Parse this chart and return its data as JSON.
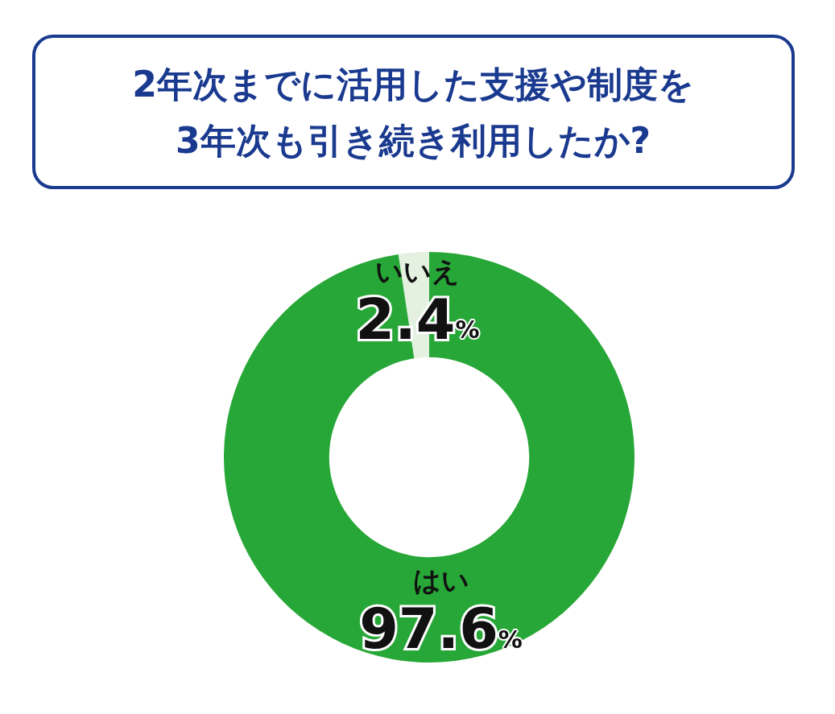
{
  "chart_data": {
    "type": "donut",
    "title": "2年次までに活用した支援や制度を\n3年次も引き続き利用したか?",
    "categories": [
      "いいえ",
      "はい"
    ],
    "values": [
      2.4,
      97.6
    ],
    "value_labels": [
      "2.4%",
      "97.6%"
    ],
    "colors": [
      "#e4f1e1",
      "#27a737"
    ],
    "legend": false
  }
}
